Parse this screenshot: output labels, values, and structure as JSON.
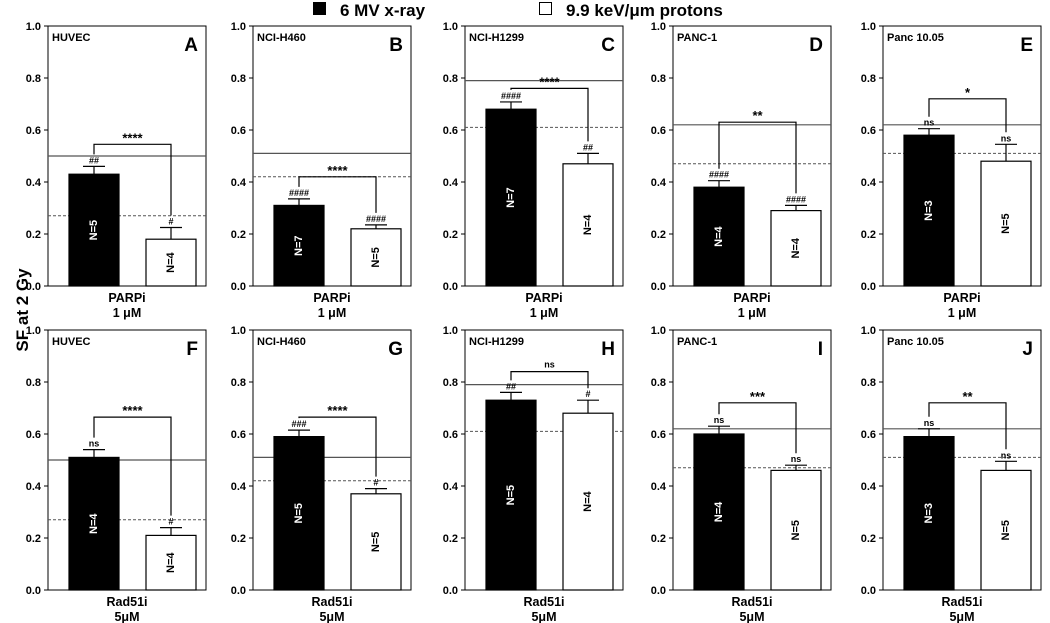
{
  "legend": {
    "items": [
      {
        "label": "6 MV x-ray",
        "fill": "#000000"
      },
      {
        "label": "9.9 keV/μm protons",
        "fill": "#ffffff"
      }
    ]
  },
  "ylabel": "SF at 2 Gy",
  "colors": {
    "xray": "#000000",
    "proton": "#ffffff",
    "axis": "#000000"
  },
  "chart_data": [
    {
      "type": "bar",
      "letter": "A",
      "cell_line": "HUVEC",
      "ylim": [
        0,
        1.0
      ],
      "yticks": [
        "0.0",
        "0.2",
        "0.4",
        "0.6",
        "0.8",
        "1.0"
      ],
      "xlabel": [
        "PARPi",
        "1 μM"
      ],
      "series": [
        {
          "name": "6 MV x-ray",
          "value": 0.43,
          "error": 0.03,
          "n_label": "N=5",
          "sig": "##"
        },
        {
          "name": "9.9 keV/μm protons",
          "value": 0.18,
          "error": 0.045,
          "n_label": "N=4",
          "sig": "#"
        }
      ],
      "ref_solid": 0.5,
      "ref_dashed": 0.27,
      "bracket_label": "****",
      "bracket_y": 0.545
    },
    {
      "type": "bar",
      "letter": "B",
      "cell_line": "NCI-H460",
      "ylim": [
        0,
        1.0
      ],
      "yticks": [
        "0.0",
        "0.2",
        "0.4",
        "0.6",
        "0.8",
        "1.0"
      ],
      "xlabel": [
        "PARPi",
        "1 μM"
      ],
      "series": [
        {
          "name": "6 MV x-ray",
          "value": 0.31,
          "error": 0.025,
          "n_label": "N=7",
          "sig": "####"
        },
        {
          "name": "9.9 keV/μm protons",
          "value": 0.22,
          "error": 0.015,
          "n_label": "N=5",
          "sig": "####"
        }
      ],
      "ref_solid": 0.51,
      "ref_dashed": 0.42,
      "bracket_label": "****",
      "bracket_y": 0.42
    },
    {
      "type": "bar",
      "letter": "C",
      "cell_line": "NCI-H1299",
      "ylim": [
        0,
        1.0
      ],
      "yticks": [
        "0.0",
        "0.2",
        "0.4",
        "0.6",
        "0.8",
        "1.0"
      ],
      "xlabel": [
        "PARPi",
        "1 μM"
      ],
      "series": [
        {
          "name": "6 MV x-ray",
          "value": 0.68,
          "error": 0.028,
          "n_label": "N=7",
          "sig": "####"
        },
        {
          "name": "9.9 keV/μm protons",
          "value": 0.47,
          "error": 0.04,
          "n_label": "N=4",
          "sig": "##"
        }
      ],
      "ref_solid": 0.79,
      "ref_dashed": 0.61,
      "bracket_label": "****",
      "bracket_y": 0.76
    },
    {
      "type": "bar",
      "letter": "D",
      "cell_line": "PANC-1",
      "ylim": [
        0,
        1.0
      ],
      "yticks": [
        "0.0",
        "0.2",
        "0.4",
        "0.6",
        "0.8",
        "1.0"
      ],
      "xlabel": [
        "PARPi",
        "1 μM"
      ],
      "series": [
        {
          "name": "6 MV x-ray",
          "value": 0.38,
          "error": 0.025,
          "n_label": "N=4",
          "sig": "####"
        },
        {
          "name": "9.9 keV/μm protons",
          "value": 0.29,
          "error": 0.02,
          "n_label": "N=4",
          "sig": "####"
        }
      ],
      "ref_solid": 0.62,
      "ref_dashed": 0.47,
      "bracket_label": "**",
      "bracket_y": 0.63
    },
    {
      "type": "bar",
      "letter": "E",
      "cell_line": "Panc 10.05",
      "ylim": [
        0,
        1.0
      ],
      "yticks": [
        "0.0",
        "0.2",
        "0.4",
        "0.6",
        "0.8",
        "1.0"
      ],
      "xlabel": [
        "PARPi",
        "1 μM"
      ],
      "series": [
        {
          "name": "6 MV x-ray",
          "value": 0.58,
          "error": 0.025,
          "n_label": "N=3",
          "sig": "ns"
        },
        {
          "name": "9.9 keV/μm protons",
          "value": 0.48,
          "error": 0.065,
          "n_label": "N=5",
          "sig": "ns"
        }
      ],
      "ref_solid": 0.62,
      "ref_dashed": 0.51,
      "bracket_label": "*",
      "bracket_y": 0.72
    },
    {
      "type": "bar",
      "letter": "F",
      "cell_line": "HUVEC",
      "ylim": [
        0,
        1.0
      ],
      "yticks": [
        "0.0",
        "0.2",
        "0.4",
        "0.6",
        "0.8",
        "1.0"
      ],
      "xlabel": [
        "Rad51i",
        "5μM"
      ],
      "series": [
        {
          "name": "6 MV x-ray",
          "value": 0.51,
          "error": 0.03,
          "n_label": "N=4",
          "sig": "ns"
        },
        {
          "name": "9.9 keV/μm protons",
          "value": 0.21,
          "error": 0.03,
          "n_label": "N=4",
          "sig": "#"
        }
      ],
      "ref_solid": 0.5,
      "ref_dashed": 0.27,
      "bracket_label": "****",
      "bracket_y": 0.665
    },
    {
      "type": "bar",
      "letter": "G",
      "cell_line": "NCI-H460",
      "ylim": [
        0,
        1.0
      ],
      "yticks": [
        "0.0",
        "0.2",
        "0.4",
        "0.6",
        "0.8",
        "1.0"
      ],
      "xlabel": [
        "Rad51i",
        "5μM"
      ],
      "series": [
        {
          "name": "6 MV x-ray",
          "value": 0.59,
          "error": 0.025,
          "n_label": "N=5",
          "sig": "###"
        },
        {
          "name": "9.9 keV/μm protons",
          "value": 0.37,
          "error": 0.02,
          "n_label": "N=5",
          "sig": "#"
        }
      ],
      "ref_solid": 0.51,
      "ref_dashed": 0.42,
      "bracket_label": "****",
      "bracket_y": 0.665
    },
    {
      "type": "bar",
      "letter": "H",
      "cell_line": "NCI-H1299",
      "ylim": [
        0,
        1.0
      ],
      "yticks": [
        "0.0",
        "0.2",
        "0.4",
        "0.6",
        "0.8",
        "1.0"
      ],
      "xlabel": [
        "Rad51i",
        "5μM"
      ],
      "series": [
        {
          "name": "6 MV x-ray",
          "value": 0.73,
          "error": 0.03,
          "n_label": "N=5",
          "sig": "##"
        },
        {
          "name": "9.9 keV/μm protons",
          "value": 0.68,
          "error": 0.05,
          "n_label": "N=4",
          "sig": "#"
        }
      ],
      "ref_solid": 0.79,
      "ref_dashed": 0.61,
      "bracket_label": "ns",
      "bracket_y": 0.84
    },
    {
      "type": "bar",
      "letter": "I",
      "cell_line": "PANC-1",
      "ylim": [
        0,
        1.0
      ],
      "yticks": [
        "0.0",
        "0.2",
        "0.4",
        "0.6",
        "0.8",
        "1.0"
      ],
      "xlabel": [
        "Rad51i",
        "5μM"
      ],
      "series": [
        {
          "name": "6 MV x-ray",
          "value": 0.6,
          "error": 0.03,
          "n_label": "N=4",
          "sig": "ns"
        },
        {
          "name": "9.9 keV/μm protons",
          "value": 0.46,
          "error": 0.02,
          "n_label": "N=5",
          "sig": "ns"
        }
      ],
      "ref_solid": 0.62,
      "ref_dashed": 0.47,
      "bracket_label": "***",
      "bracket_y": 0.72
    },
    {
      "type": "bar",
      "letter": "J",
      "cell_line": "Panc 10.05",
      "ylim": [
        0,
        1.0
      ],
      "yticks": [
        "0.0",
        "0.2",
        "0.4",
        "0.6",
        "0.8",
        "1.0"
      ],
      "xlabel": [
        "Rad51i",
        "5μM"
      ],
      "series": [
        {
          "name": "6 MV x-ray",
          "value": 0.59,
          "error": 0.03,
          "n_label": "N=3",
          "sig": "ns"
        },
        {
          "name": "9.9 keV/μm protons",
          "value": 0.46,
          "error": 0.035,
          "n_label": "N=5",
          "sig": "ns"
        }
      ],
      "ref_solid": 0.62,
      "ref_dashed": 0.51,
      "bracket_label": "**",
      "bracket_y": 0.72
    }
  ]
}
